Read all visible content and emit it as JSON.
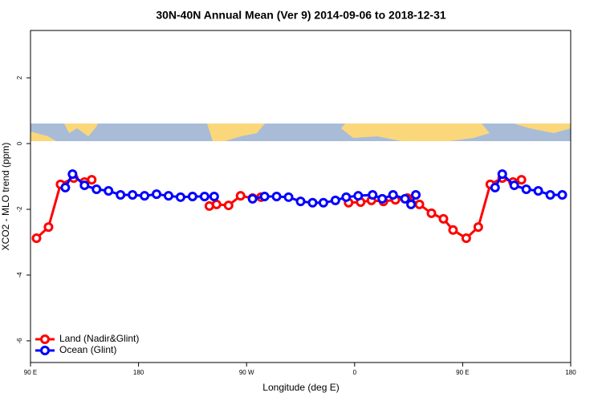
{
  "chart_data": {
    "type": "line",
    "title": "30N-40N Annual Mean (Ver 9)   2014-09-06 to 2018-12-31",
    "x_label": "Longitude (deg E)",
    "y_label": "XCO2 - MLO trend (ppm)",
    "xlim": [
      90,
      540
    ],
    "ylim": [
      -6.66,
      3.44
    ],
    "xticks": [
      {
        "value": 90,
        "label": "90 E"
      },
      180,
      {
        "value": 270,
        "label": "90 W"
      },
      {
        "value": 360,
        "label": "0"
      },
      {
        "value": 450,
        "label": "90 E"
      },
      {
        "value": 540,
        "label": "180"
      }
    ],
    "yticks": [
      2,
      0,
      -2,
      -4,
      -6
    ],
    "legend": "bottom-left",
    "series": [
      {
        "name": "Land (Nadir&Glint)",
        "color": "#ff0000",
        "x": [
          95,
          105,
          115,
          126,
          135,
          141,
          null,
          239,
          245,
          255,
          265,
          275,
          282,
          null,
          355,
          365,
          374,
          384,
          394,
          404,
          414,
          424,
          434,
          442,
          453,
          463,
          473,
          483,
          492,
          499
        ],
        "values": [
          -2.88,
          -2.54,
          -1.24,
          -1.05,
          -1.17,
          -1.1,
          null,
          -1.9,
          -1.85,
          -1.88,
          -1.59,
          -1.66,
          -1.63,
          null,
          -1.8,
          -1.78,
          -1.73,
          -1.76,
          -1.71,
          -1.66,
          -1.85,
          -2.12,
          -2.29,
          -2.63,
          -2.88,
          -2.54,
          -1.24,
          -1.05,
          -1.17,
          -1.1
        ]
      },
      {
        "name": "Ocean (Glint)",
        "color": "#0000ff",
        "x": [
          119,
          125,
          135,
          145,
          155,
          165,
          175,
          185,
          195,
          205,
          215,
          225,
          235,
          243,
          null,
          275,
          285,
          295,
          305,
          315,
          325,
          334,
          344,
          353,
          363,
          375,
          383,
          392,
          402,
          407,
          411,
          null,
          477,
          483,
          493,
          503,
          513,
          523,
          533
        ],
        "values": [
          -1.34,
          -0.93,
          -1.27,
          -1.39,
          -1.44,
          -1.56,
          -1.56,
          -1.59,
          -1.54,
          -1.59,
          -1.63,
          -1.61,
          -1.61,
          -1.61,
          null,
          -1.68,
          -1.61,
          -1.61,
          -1.63,
          -1.76,
          -1.8,
          -1.8,
          -1.73,
          -1.63,
          -1.59,
          -1.56,
          -1.68,
          -1.56,
          -1.68,
          -1.85,
          -1.56,
          null,
          -1.34,
          -0.93,
          -1.27,
          -1.39,
          -1.44,
          -1.56,
          -1.56
        ]
      }
    ]
  }
}
